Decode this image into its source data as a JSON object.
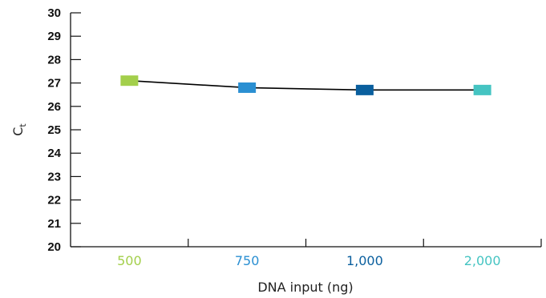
{
  "chart_data": {
    "type": "line",
    "categories": [
      "500",
      "750",
      "1,000",
      "2,000"
    ],
    "category_colors": [
      "#a3cf4b",
      "#2a8fd2",
      "#0a5f9e",
      "#45c4c2"
    ],
    "series": [
      {
        "values": [
          27.1,
          26.8,
          26.7,
          26.7
        ],
        "color": "#000000",
        "marker": "square"
      }
    ],
    "xlabel": "DNA input (ng)",
    "ylabel_main": "C",
    "ylabel_sub": "t",
    "ylim": [
      20,
      30
    ],
    "yticks": [
      "20",
      "21",
      "22",
      "23",
      "24",
      "25",
      "26",
      "27",
      "28",
      "29",
      "30"
    ],
    "grid": false
  }
}
